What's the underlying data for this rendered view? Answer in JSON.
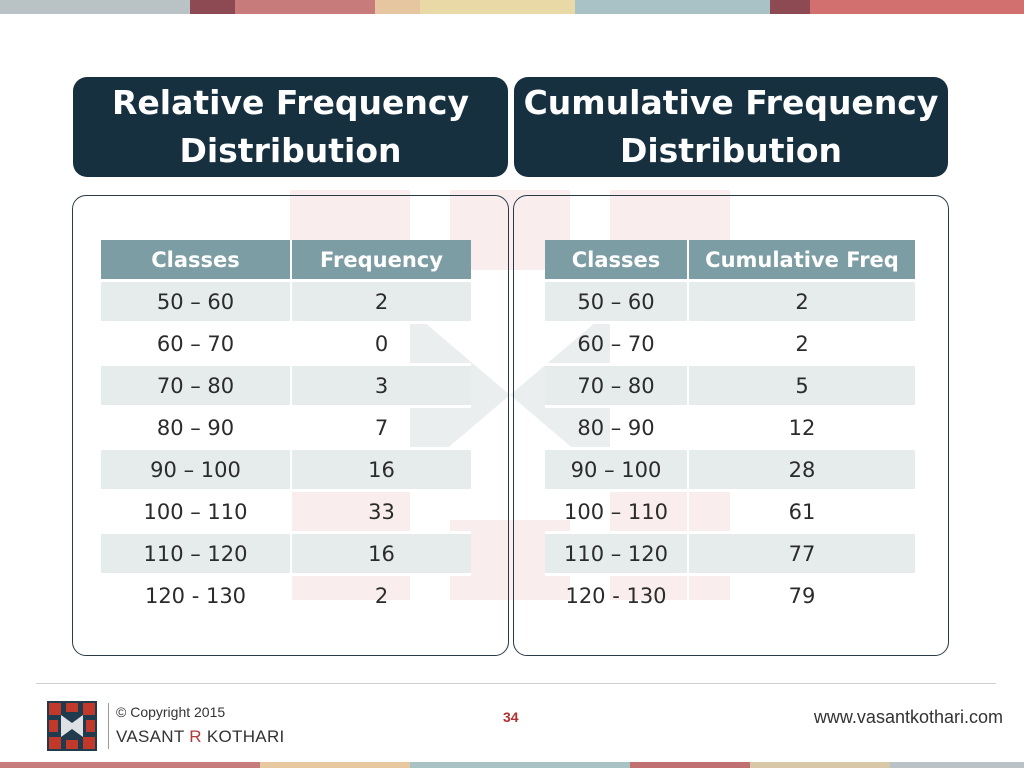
{
  "colors": {
    "header_bg": "#17303f",
    "table_header_bg": "#7d9da4",
    "row_shade": "#e6ebeb",
    "accent_red": "#b03030",
    "top_stripes": [
      "#b9c3c6",
      "#8d4a52",
      "#c87b7b",
      "#e5c6a0",
      "#e9d9a7",
      "#a8c2c5",
      "#d26f6f"
    ],
    "bottom_stripes": [
      "#c77c7c",
      "#e8c8a0",
      "#a9c3c5",
      "#c07070",
      "#d9c8a8",
      "#b9c3c6"
    ]
  },
  "left": {
    "title_line1": "Relative Frequency",
    "title_line2": "Distribution",
    "headers": [
      "Classes",
      "Frequency"
    ],
    "rows": [
      [
        "50 – 60",
        "2"
      ],
      [
        "60 – 70",
        "0"
      ],
      [
        "70 – 80",
        "3"
      ],
      [
        "80 – 90",
        "7"
      ],
      [
        "90 – 100",
        "16"
      ],
      [
        "100 – 110",
        "33"
      ],
      [
        "110 – 120",
        "16"
      ],
      [
        "120 - 130",
        "2"
      ]
    ]
  },
  "right": {
    "title_line1": "Cumulative Frequency",
    "title_line2": "Distribution",
    "headers": [
      "Classes",
      "Cumulative Freq"
    ],
    "rows": [
      [
        "50 – 60",
        "2"
      ],
      [
        "60 – 70",
        "2"
      ],
      [
        "70 – 80",
        "5"
      ],
      [
        "80 – 90",
        "12"
      ],
      [
        "90 – 100",
        "28"
      ],
      [
        "100 – 110",
        "61"
      ],
      [
        "110 – 120",
        "77"
      ],
      [
        "120 - 130",
        "79"
      ]
    ]
  },
  "footer": {
    "copyright": "© Copyright 2015",
    "author_first": "VASANT ",
    "author_initial": "R",
    "author_last": " KOTHARI",
    "page_number": "34",
    "website": "www.vasantkothari.com",
    "logo_icon": "vk-logo-icon"
  }
}
